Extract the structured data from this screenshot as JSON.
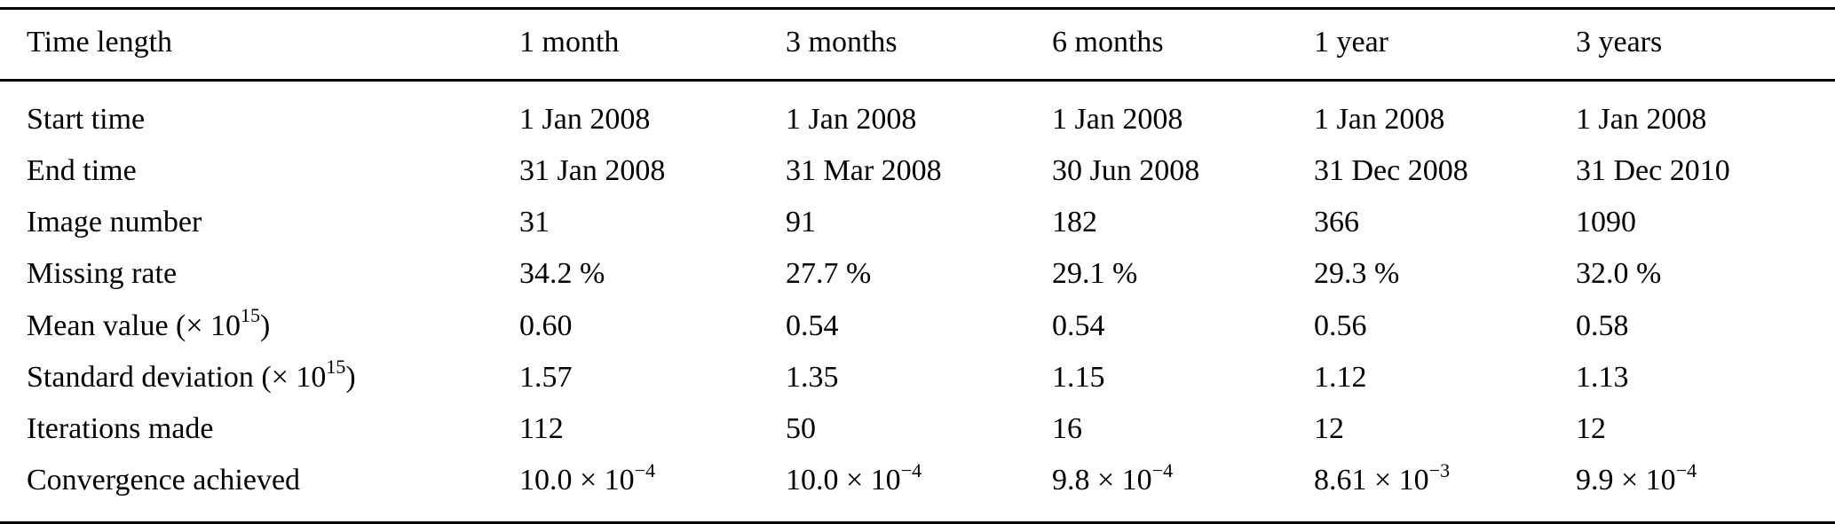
{
  "chart_data": {
    "type": "table",
    "columns": [
      "Time length",
      "1 month",
      "3 months",
      "6 months",
      "1 year",
      "3 years"
    ],
    "rows": [
      {
        "label": "Start time",
        "values": [
          "1 Jan 2008",
          "1 Jan 2008",
          "1 Jan 2008",
          "1 Jan 2008",
          "1 Jan 2008"
        ]
      },
      {
        "label": "End time",
        "values": [
          "31 Jan 2008",
          "31 Mar 2008",
          "30 Jun 2008",
          "31 Dec 2008",
          "31 Dec 2010"
        ]
      },
      {
        "label": "Image number",
        "values": [
          "31",
          "91",
          "182",
          "366",
          "1090"
        ]
      },
      {
        "label": "Missing rate",
        "values": [
          "34.2 %",
          "27.7 %",
          "29.1 %",
          "29.3 %",
          "32.0 %"
        ]
      },
      {
        "label": "Mean value (× 10^{15})",
        "values": [
          "0.60",
          "0.54",
          "0.54",
          "0.56",
          "0.58"
        ]
      },
      {
        "label": "Standard deviation (× 10^{15})",
        "values": [
          "1.57",
          "1.35",
          "1.15",
          "1.12",
          "1.13"
        ]
      },
      {
        "label": "Iterations made",
        "values": [
          "112",
          "50",
          "16",
          "12",
          "12"
        ]
      },
      {
        "label": "Convergence achieved",
        "values": [
          "10.0 × 10^{−4}",
          "10.0 × 10^{−4}",
          "9.8 × 10^{−4}",
          "8.61 × 10^{−3}",
          "9.9 × 10^{−4}"
        ]
      }
    ]
  }
}
